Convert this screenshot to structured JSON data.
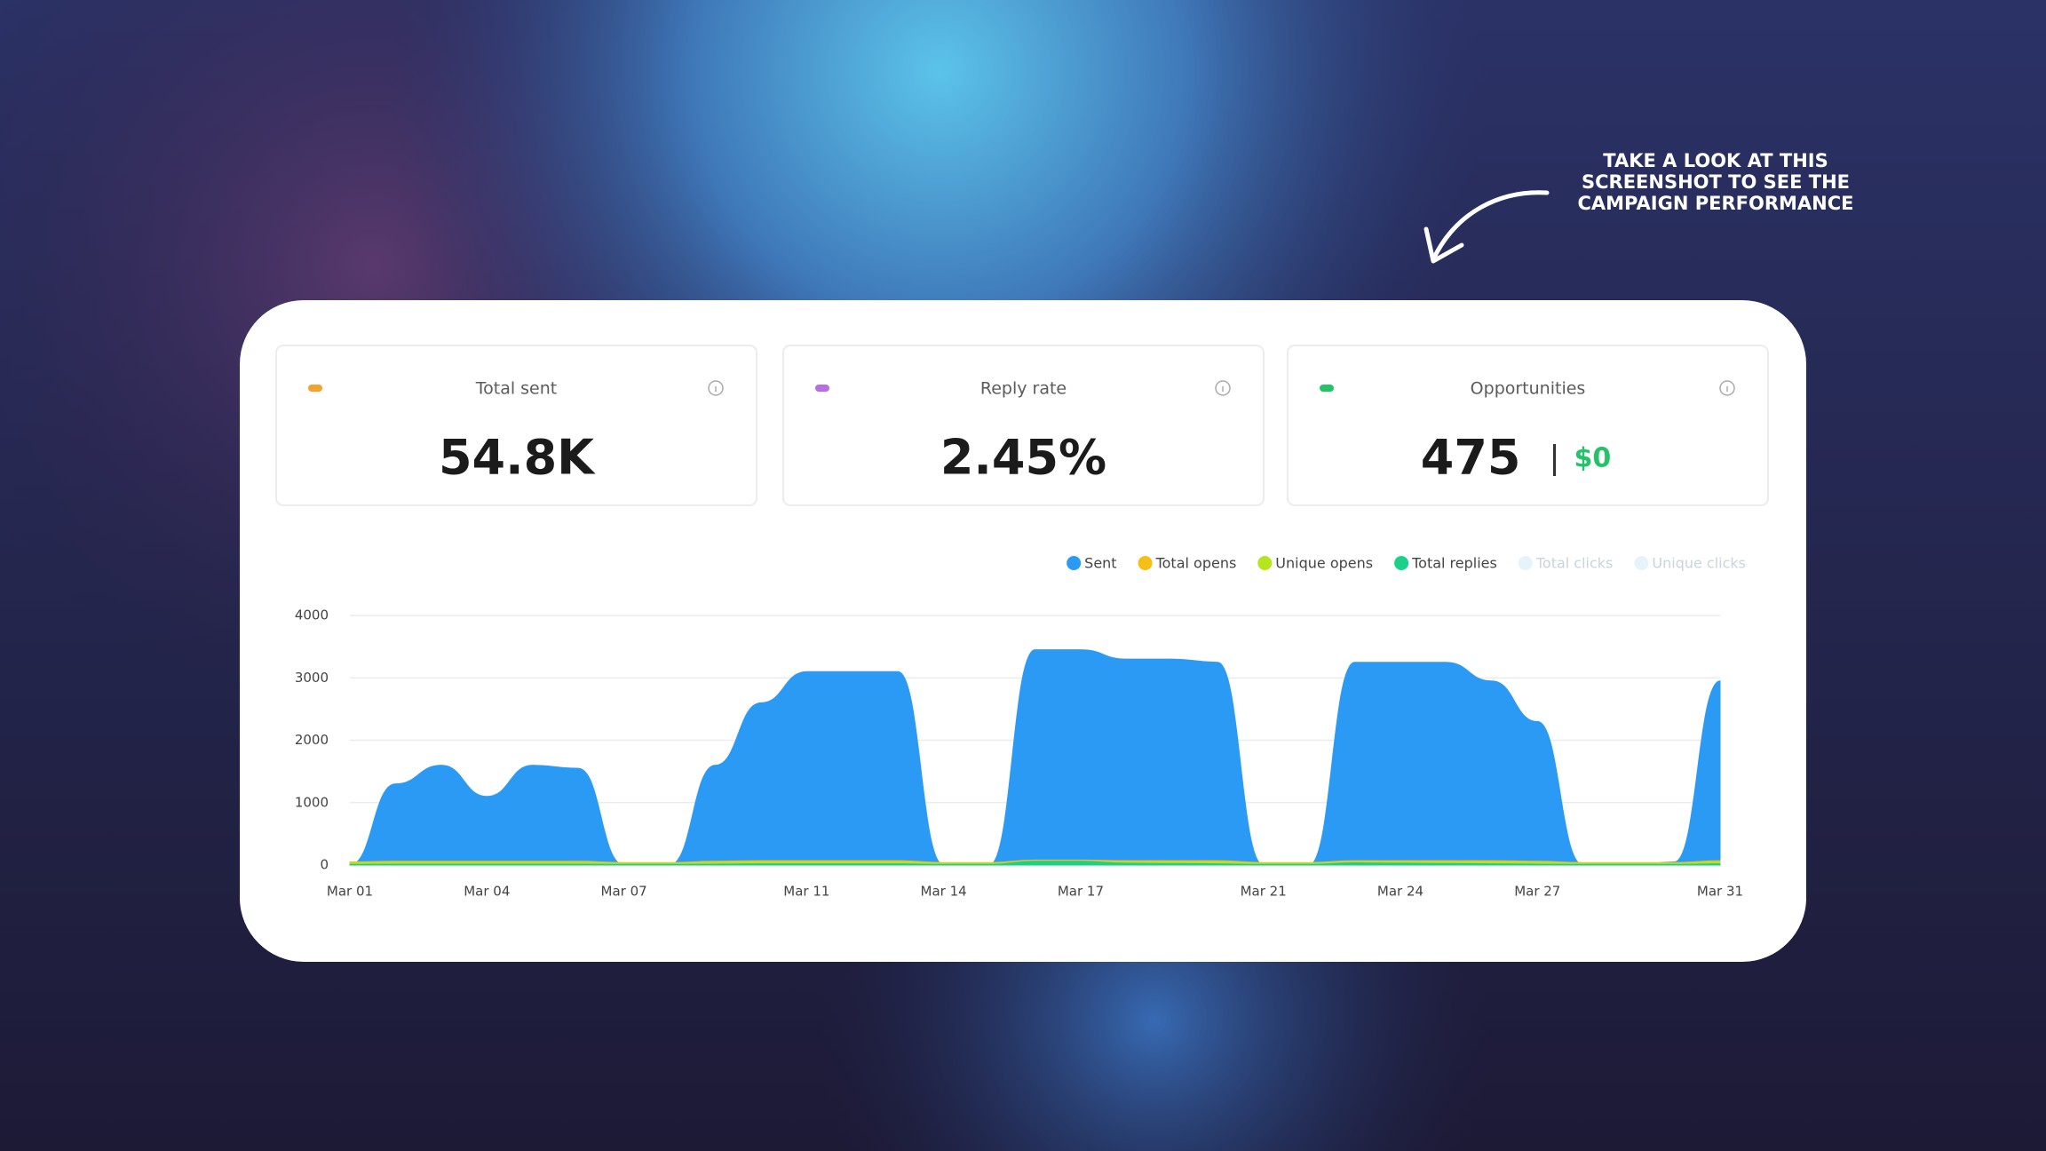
{
  "annotation": [
    "TAKE A LOOK AT THIS",
    "SCREENSHOT TO SEE THE",
    "CAMPAIGN PERFORMANCE"
  ],
  "stats": [
    {
      "label": "Total sent",
      "value": "54.8K",
      "color": "#f5a12e"
    },
    {
      "label": "Reply rate",
      "value": "2.45%",
      "color": "#b46fe3"
    },
    {
      "label": "Opportunities",
      "value": "475",
      "extra": "$0",
      "color": "#25c26a"
    }
  ],
  "chart_data": {
    "type": "area",
    "categories": [
      "Mar 01",
      null,
      null,
      "Mar 04",
      null,
      null,
      "Mar 07",
      null,
      null,
      null,
      "Mar 11",
      null,
      null,
      "Mar 14",
      null,
      null,
      "Mar 17",
      null,
      null,
      null,
      "Mar 21",
      null,
      null,
      "Mar 24",
      null,
      null,
      "Mar 27",
      null,
      null,
      null,
      "Mar 31"
    ],
    "series": [
      {
        "name": "Sent",
        "color": "#2b9af5",
        "values": [
          0,
          1300,
          1600,
          1100,
          1600,
          1550,
          0,
          0,
          1600,
          2600,
          3100,
          3100,
          3100,
          0,
          0,
          3450,
          3450,
          3300,
          3300,
          3250,
          0,
          0,
          3250,
          3250,
          3250,
          2950,
          2300,
          0,
          0,
          50,
          2950
        ]
      },
      {
        "name": "Total opens",
        "color": "#f6bf16",
        "values": [
          50,
          60,
          60,
          60,
          60,
          60,
          40,
          40,
          60,
          70,
          70,
          70,
          70,
          40,
          40,
          80,
          80,
          70,
          70,
          70,
          40,
          40,
          70,
          70,
          70,
          70,
          60,
          40,
          40,
          40,
          70
        ]
      },
      {
        "name": "Unique opens",
        "color": "#b5e61d",
        "values": [
          30,
          40,
          40,
          40,
          40,
          40,
          25,
          25,
          40,
          45,
          45,
          45,
          45,
          25,
          25,
          50,
          50,
          45,
          45,
          45,
          25,
          25,
          45,
          45,
          45,
          45,
          40,
          25,
          25,
          25,
          45
        ]
      },
      {
        "name": "Total replies",
        "color": "#1bd18a",
        "values": [
          10,
          15,
          15,
          15,
          15,
          15,
          10,
          10,
          15,
          20,
          20,
          20,
          20,
          10,
          10,
          60,
          60,
          30,
          25,
          20,
          10,
          10,
          35,
          30,
          25,
          20,
          15,
          10,
          10,
          10,
          20
        ]
      },
      {
        "name": "Total clicks",
        "color": "#e6f3fa",
        "visible": false
      },
      {
        "name": "Unique clicks",
        "color": "#e6f3fa",
        "visible": false
      }
    ],
    "ylim": [
      0,
      4000
    ],
    "yticks": [
      0,
      1000,
      2000,
      3000,
      4000
    ],
    "grid": true,
    "legend": "top-right"
  }
}
